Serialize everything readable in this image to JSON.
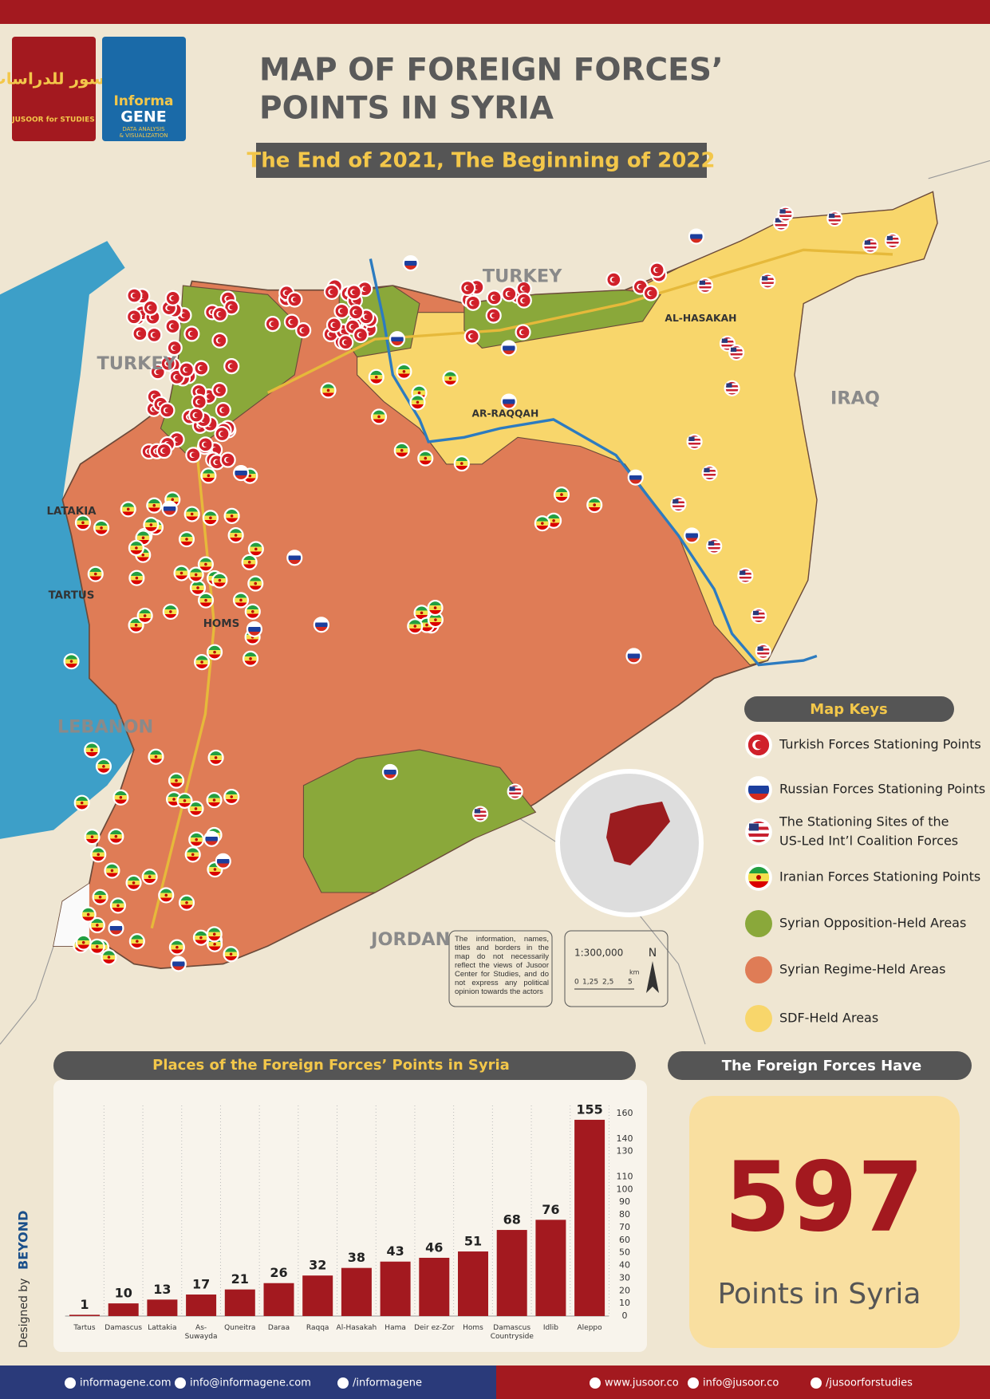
{
  "header": {
    "logo_jusoor_arabic": "جسور للدراسات",
    "logo_jusoor": "JUSOOR for STUDIES",
    "logo_informa": [
      "Informa",
      "GENE",
      "DATA ANALYSIS",
      "& VISUALIZATION"
    ],
    "title": [
      "MAP OF FOREIGN FORCES’",
      "POINTS IN SYRIA"
    ],
    "subtitle": "The End of 2021, The Beginning of 2022"
  },
  "map": {
    "labels": [
      "TURKEY",
      "TURKEY",
      "IRAQ",
      "LEBANON",
      "JORDAN",
      "LATAKIA",
      "TARTUS",
      "HOMS",
      "AR-RAQQAH",
      "AL-HASAKAH"
    ],
    "disclaimer": "The information, names, titles and borders in the map do not necessarily reflect the views of Jusoor Center for Studies, and do not express any political opinion towards the actors",
    "scale": "1:300,000",
    "scale_ticks": [
      "0",
      "1,25",
      "2,5",
      "5"
    ],
    "scale_unit": "km",
    "north": "N"
  },
  "map_keys": {
    "title": "Map Keys",
    "items": [
      {
        "label": [
          "Turkish Forces Stationing Points"
        ],
        "icon": "turkey"
      },
      {
        "label": [
          "Russian Forces Stationing Points"
        ],
        "icon": "russia"
      },
      {
        "label": [
          "The Stationing Sites of the",
          "US-Led Int’l Coalition Forces"
        ],
        "icon": "us"
      },
      {
        "label": [
          "Iranian Forces Stationing Points"
        ],
        "icon": "iran"
      },
      {
        "label": [
          "Syrian Opposition-Held Areas"
        ],
        "color": "#8aa83a"
      },
      {
        "label": [
          "Syrian Regime-Held Areas"
        ],
        "color": "#df7c56"
      },
      {
        "label": [
          "SDF-Held Areas"
        ],
        "color": "#f8d66b"
      }
    ]
  },
  "chart_data": {
    "type": "bar",
    "title": "Places of the Foreign Forces’ Points in Syria",
    "categories": [
      "Tartus",
      "Damascus",
      "Lattakia",
      "As-Suwayda",
      "Quneitra",
      "Daraa",
      "Raqqa",
      "Al-Hasakah",
      "Hama",
      "Deir ez-Zor",
      "Homs",
      "Damascus Countryside",
      "Idlib",
      "Aleppo"
    ],
    "values": [
      1,
      10,
      13,
      17,
      21,
      26,
      32,
      38,
      43,
      46,
      51,
      68,
      76,
      155
    ],
    "color": "#a3191f",
    "ylim": [
      0,
      160
    ],
    "yticks": [
      0,
      10,
      20,
      30,
      40,
      50,
      60,
      70,
      80,
      90,
      100,
      110,
      130,
      140,
      160
    ],
    "grid": false
  },
  "total": {
    "title": "The Foreign Forces Have",
    "value": 597,
    "label": "Points in Syria"
  },
  "credit": {
    "designed_by": "Designed by",
    "designer": "BEYOND"
  },
  "footer": {
    "left": [
      "informagene.com",
      "info@informagene.com",
      "/informagene"
    ],
    "right": [
      "www.jusoor.co",
      "info@jusoor.co",
      "/jusoorforstudies"
    ]
  }
}
